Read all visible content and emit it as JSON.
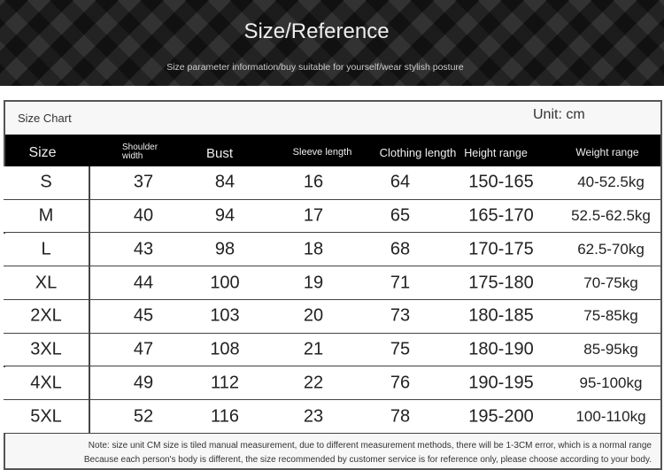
{
  "banner": {
    "title": "Size/Reference",
    "subtitle": "Size parameter information/buy suitable for yourself/wear stylish posture"
  },
  "caption": "Size Chart",
  "unit": "Unit: cm",
  "headers": [
    "Size",
    "Shoulder width",
    "Bust",
    "Sleeve length",
    "Clothing length",
    "Height range",
    "Weight range"
  ],
  "rows": [
    [
      "S",
      "37",
      "84",
      "16",
      "64",
      "150-165",
      "40-52.5kg"
    ],
    [
      "M",
      "40",
      "94",
      "17",
      "65",
      "165-170",
      "52.5-62.5kg"
    ],
    [
      "L",
      "43",
      "98",
      "18",
      "68",
      "170-175",
      "62.5-70kg"
    ],
    [
      "XL",
      "44",
      "100",
      "19",
      "71",
      "175-180",
      "70-75kg"
    ],
    [
      "2XL",
      "45",
      "103",
      "20",
      "73",
      "180-185",
      "75-85kg"
    ],
    [
      "3XL",
      "47",
      "108",
      "21",
      "75",
      "180-190",
      "85-95kg"
    ],
    [
      "4XL",
      "49",
      "112",
      "22",
      "76",
      "190-195",
      "95-100kg"
    ],
    [
      "5XL",
      "52",
      "116",
      "23",
      "78",
      "195-200",
      "100-110kg"
    ]
  ],
  "notes": [
    "Note: size unit CM size is tiled manual measurement, due to different measurement methods, there will be 1-3CM error, which is a normal range",
    "Because each person's body is different, the size recommended by customer service is for reference only, please choose according to your body."
  ]
}
